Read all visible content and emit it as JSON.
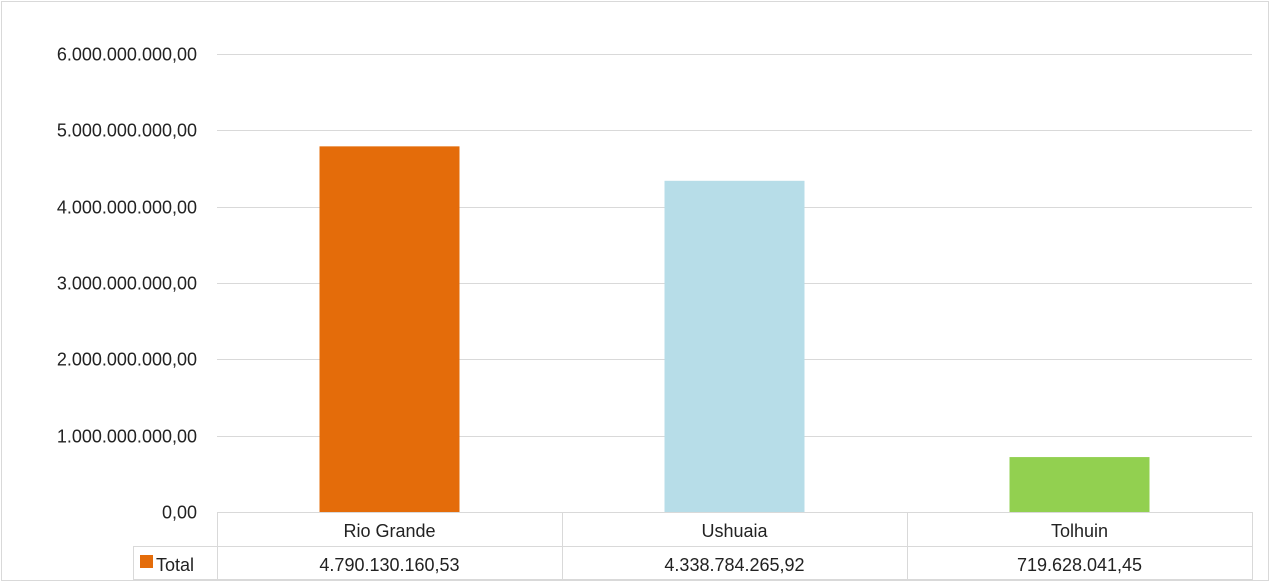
{
  "chart_data": {
    "type": "bar",
    "categories": [
      "Rio Grande",
      "Ushuaia",
      "Tolhuin"
    ],
    "series": [
      {
        "name": "Total",
        "values": [
          4790130160.53,
          4338784265.92,
          719628041.45
        ],
        "value_labels": [
          "4.790.130.160,53",
          "4.338.784.265,92",
          "719.628.041,45"
        ],
        "colors": [
          "#E46C0A",
          "#B7DDE8",
          "#92D050"
        ],
        "legend_color": "#E46C0A"
      }
    ],
    "ylim": [
      0,
      6000000000
    ],
    "yticks": [
      {
        "value": 0,
        "label": "0,00"
      },
      {
        "value": 1000000000,
        "label": "1.000.000.000,00"
      },
      {
        "value": 2000000000,
        "label": "2.000.000.000,00"
      },
      {
        "value": 3000000000,
        "label": "3.000.000.000,00"
      },
      {
        "value": 4000000000,
        "label": "4.000.000.000,00"
      },
      {
        "value": 5000000000,
        "label": "5.000.000.000,00"
      },
      {
        "value": 6000000000,
        "label": "6.000.000.000,00"
      }
    ],
    "grid": true,
    "legend": "data-table",
    "title": "",
    "xlabel": "",
    "ylabel": ""
  }
}
